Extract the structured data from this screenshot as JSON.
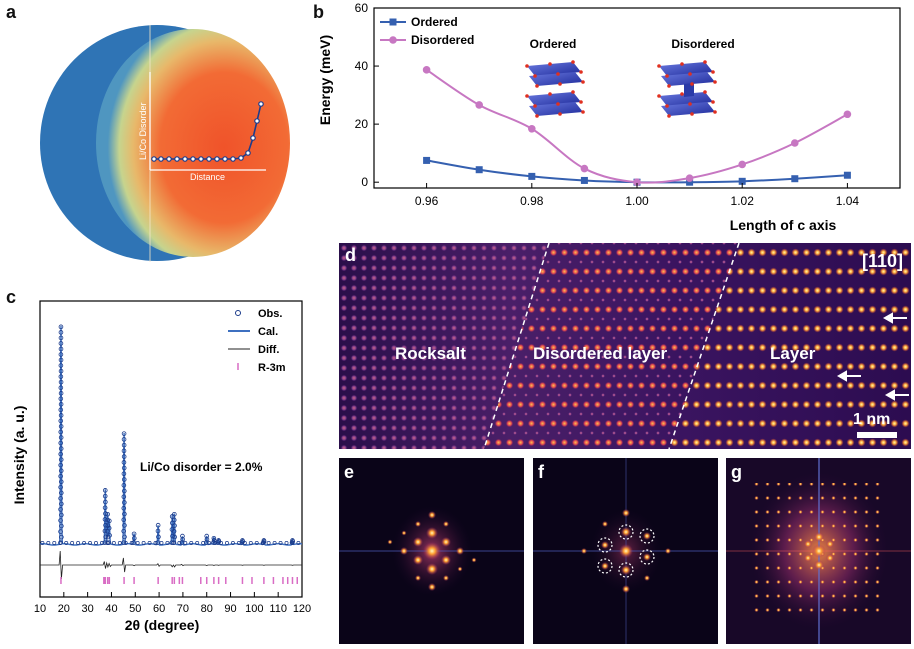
{
  "panels": {
    "a": "a",
    "b": "b",
    "c": "c",
    "d": "d",
    "e": "e",
    "f": "f",
    "g": "g"
  },
  "panel_a": {
    "ylabel": "Li/Co Disorder",
    "xlabel": "Distance"
  },
  "panel_d": {
    "zone_axis": "[110]",
    "regions": [
      "Rocksalt",
      "Disordered layer",
      "Layer"
    ],
    "scale_bar": "1 nm"
  },
  "chart_data": [
    {
      "type": "line",
      "panel": "b",
      "xlabel": "Length of c axis",
      "ylabel": "Energy (meV)",
      "xlim": [
        0.95,
        1.05
      ],
      "ylim": [
        -2,
        60
      ],
      "xticks": [
        "0.96",
        "0.98",
        "1.00",
        "1.02",
        "1.04"
      ],
      "yticks": [
        "0",
        "20",
        "40",
        "60"
      ],
      "legend": "top-left",
      "x": [
        0.96,
        0.97,
        0.98,
        0.99,
        1.0,
        1.01,
        1.02,
        1.03,
        1.04
      ],
      "series": [
        {
          "name": "Ordered",
          "color": "#3560b0",
          "values": [
            7.5,
            4.3,
            2.0,
            0.6,
            0.0,
            0.0,
            0.3,
            1.2,
            2.4
          ]
        },
        {
          "name": "Disordered",
          "color": "#c777c2",
          "values": [
            38.7,
            26.6,
            18.4,
            4.7,
            0.0,
            1.4,
            6.1,
            13.5,
            23.4
          ]
        }
      ],
      "annotations": [
        "Ordered",
        "Disordered"
      ]
    },
    {
      "type": "line",
      "panel": "c",
      "xlabel": "2θ (degree)",
      "ylabel": "Intensity (a. u.)",
      "xlim": [
        10,
        120
      ],
      "xticks": [
        "10",
        "20",
        "30",
        "40",
        "50",
        "60",
        "70",
        "80",
        "90",
        "100",
        "110",
        "120"
      ],
      "legend": "top-right",
      "series": [
        {
          "name": "Obs.",
          "color": "#1a3a8a"
        },
        {
          "name": "Cal.",
          "color": "#3d70c0"
        },
        {
          "name": "Diff.",
          "color": "#222222"
        },
        {
          "name": "R-3m",
          "color": "#d96cc4"
        }
      ],
      "peaks": [
        {
          "x": 18.8,
          "h": 1.0
        },
        {
          "x": 37.4,
          "h": 0.25
        },
        {
          "x": 38.4,
          "h": 0.14
        },
        {
          "x": 39.1,
          "h": 0.11
        },
        {
          "x": 45.3,
          "h": 0.51
        },
        {
          "x": 49.5,
          "h": 0.05
        },
        {
          "x": 59.6,
          "h": 0.09
        },
        {
          "x": 65.5,
          "h": 0.13
        },
        {
          "x": 66.4,
          "h": 0.14
        },
        {
          "x": 69.8,
          "h": 0.04
        },
        {
          "x": 80.0,
          "h": 0.04
        },
        {
          "x": 83.0,
          "h": 0.03
        },
        {
          "x": 85.0,
          "h": 0.02
        },
        {
          "x": 95.0,
          "h": 0.02
        },
        {
          "x": 104.0,
          "h": 0.02
        },
        {
          "x": 116.0,
          "h": 0.02
        }
      ],
      "reflections": [
        18.8,
        36.8,
        37.4,
        38.4,
        39.1,
        45.3,
        49.5,
        59.6,
        65.5,
        66.4,
        68.5,
        69.8,
        77.5,
        80.0,
        83.0,
        85.0,
        88.0,
        95.0,
        99.0,
        104.0,
        108.0,
        112.0,
        114.0,
        116.0,
        118.0
      ],
      "annotation": "Li/Co disorder = 2.0%"
    }
  ]
}
